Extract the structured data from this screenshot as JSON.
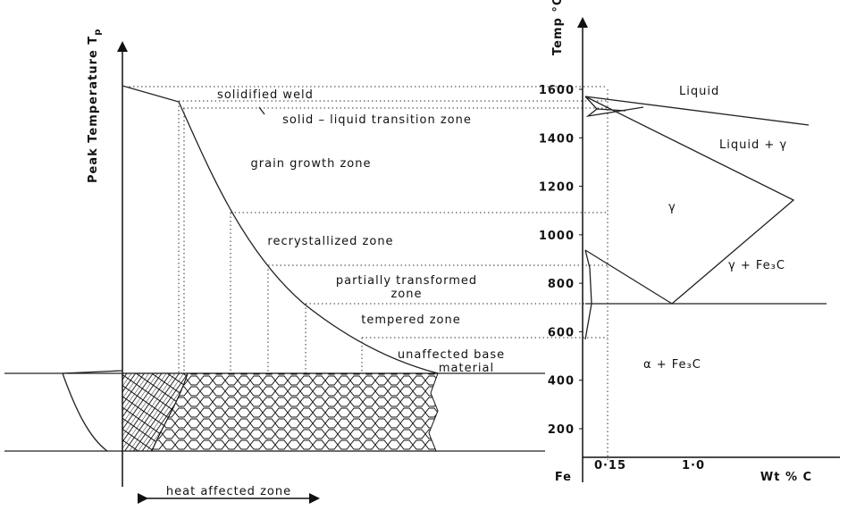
{
  "weld_diagram": {
    "y_axis_label": "Peak Temperature  T",
    "y_axis_subscript": "p",
    "zones": [
      "solidified weld",
      "solid – liquid transition zone",
      "grain growth zone",
      "recrystallized zone",
      "partially transformed",
      "zone",
      "tempered zone",
      "unaffected base",
      "material"
    ],
    "haz_label": "heat affected zone"
  },
  "phase_diagram": {
    "y_axis_label": "Temp °C",
    "yticks": [
      200,
      400,
      600,
      800,
      1000,
      1200,
      1400,
      1600
    ],
    "x_labels": [
      "Fe",
      "0·15",
      "1·0",
      "Wt % C"
    ],
    "regions": [
      "Liquid",
      "Liquid + γ",
      "γ",
      "γ + Fe₃C",
      "α + Fe₃C"
    ]
  }
}
